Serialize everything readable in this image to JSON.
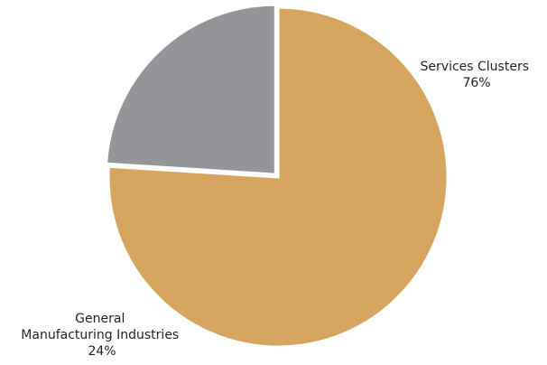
{
  "chart_data": {
    "type": "pie",
    "title": "",
    "slices": [
      {
        "label_lines": [
          "Services Clusters"
        ],
        "value": 76,
        "value_label": "76%",
        "color": "#d6a660"
      },
      {
        "label_lines": [
          "General",
          "Manufacturing Industries"
        ],
        "value": 24,
        "value_label": "24%",
        "color": "#939598"
      }
    ],
    "start_angle_deg": 0,
    "direction": "clockwise",
    "exploded_slice_index": 1,
    "legend": "none"
  }
}
